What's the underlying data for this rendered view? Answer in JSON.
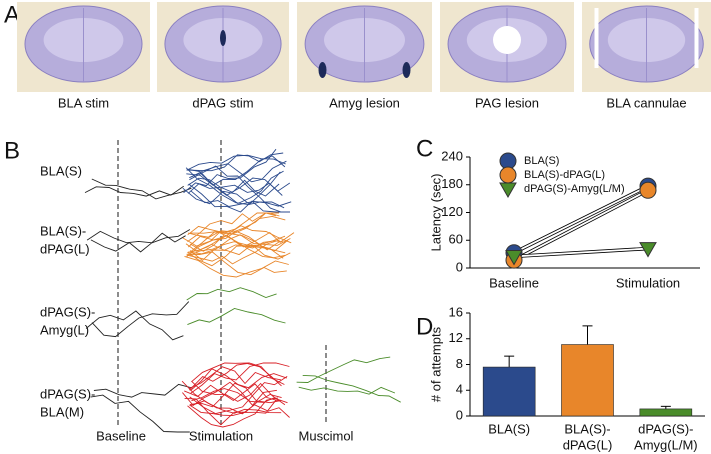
{
  "panel_labels": [
    "A",
    "B",
    "C",
    "D"
  ],
  "panel_a": {
    "labels": [
      "BLA stim",
      "dPAG stim",
      "Amyg lesion",
      "PAG lesion",
      "BLA cannulae"
    ]
  },
  "panel_b": {
    "rows": [
      [
        "BLA(S)"
      ],
      [
        "BLA(S)-",
        "dPAG(L)"
      ],
      [
        "dPAG(S)-",
        "Amyg(L)"
      ],
      [
        "dPAG(S)-",
        "BLA(M)"
      ]
    ],
    "columns": [
      "Baseline",
      "Stimulation",
      "Muscimol"
    ]
  },
  "chart_data": [
    {
      "type": "line",
      "y_label": "Latency (sec)",
      "categories": [
        "Baseline",
        "Stimulation"
      ],
      "ylim": [
        0,
        240
      ],
      "yticks": [
        0,
        60,
        120,
        180,
        240
      ],
      "legend": "upper-left",
      "series": [
        {
          "name": "BLA(S)",
          "color": "#2b4a8c",
          "marker": "circle",
          "values": [
            33,
            177
          ]
        },
        {
          "name": "BLA(S)-dPAG(L)",
          "color": "#e8862a",
          "marker": "circle",
          "values": [
            17,
            168
          ]
        },
        {
          "name": "dPAG(S)-Amyg(L/M)",
          "color": "#4a8c2a",
          "marker": "triangle-down",
          "values": [
            25,
            42
          ]
        }
      ]
    },
    {
      "type": "bar",
      "y_label": "# of attempts",
      "categories": [
        [
          "BLA(S)"
        ],
        [
          "BLA(S)-",
          "dPAG(L)"
        ],
        [
          "dPAG(S)-",
          "Amyg(L/M)"
        ]
      ],
      "values": [
        7.6,
        11.1,
        1.1
      ],
      "errors": [
        1.7,
        2.9,
        0.4
      ],
      "colors": [
        "#2b4a8c",
        "#e8862a",
        "#4a8c2a"
      ],
      "ylim": [
        0,
        16
      ],
      "yticks": [
        0,
        4,
        8,
        12,
        16
      ]
    }
  ]
}
